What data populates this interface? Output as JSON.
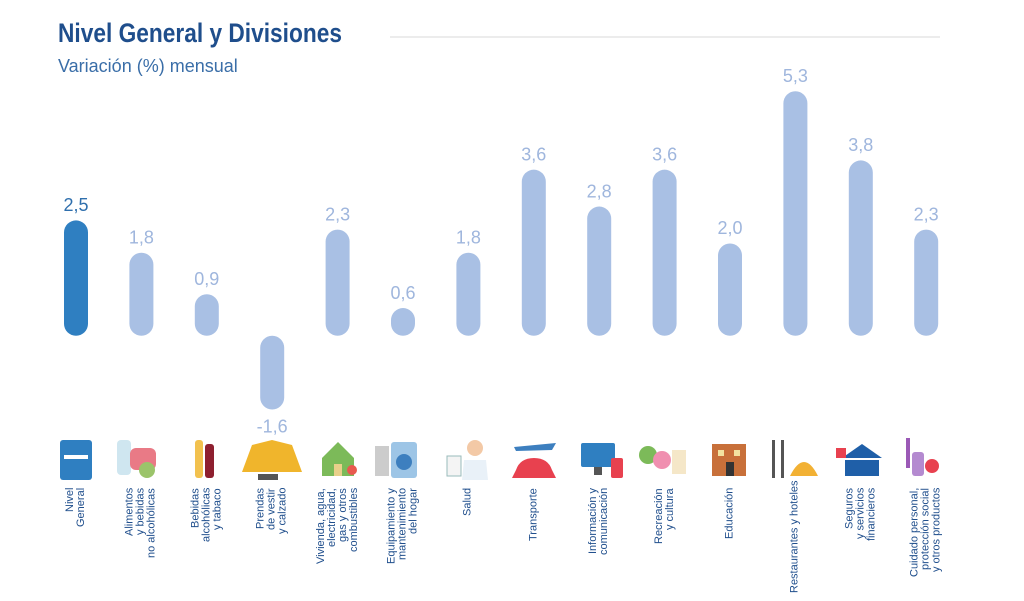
{
  "chart_data": {
    "type": "bar",
    "title": "Nivel General y Divisiones",
    "subtitle": "Variación (%) mensual",
    "categories": [
      "Nivel\nGeneral",
      "Alimentos\ny bebidas\nno alcohólicas",
      "Bebidas\nalcohólicas\ny tabaco",
      "Prendas\nde vestir\ny calzado",
      "Vivienda, agua,\nelectricidad,\ngas y otros\ncombustibles",
      "Equipamiento y\nmantenimiento\ndel hogar",
      "Salud",
      "Transporte",
      "Información y\ncomunicación",
      "Recreación\ny cultura",
      "Educación",
      "Restaurantes y hoteles",
      "Seguros\ny servicios\nfinancieros",
      "Cuidado personal,\nprotección social\ny otros productos"
    ],
    "values": [
      2.5,
      1.8,
      0.9,
      -1.6,
      2.3,
      0.6,
      1.8,
      3.6,
      2.8,
      3.6,
      2.0,
      5.3,
      3.8,
      2.3
    ],
    "value_labels": [
      "2,5",
      "1,8",
      "0,9",
      "-1,6",
      "2,3",
      "0,6",
      "1,8",
      "3,6",
      "2,8",
      "3,6",
      "2,0",
      "5,3",
      "3,8",
      "2,3"
    ],
    "colors": [
      "#2f7fc1",
      "#a9c0e4",
      "#a9c0e4",
      "#a9c0e4",
      "#a9c0e4",
      "#a9c0e4",
      "#a9c0e4",
      "#a9c0e4",
      "#a9c0e4",
      "#a9c0e4",
      "#a9c0e4",
      "#a9c0e4",
      "#a9c0e4",
      "#a9c0e4"
    ],
    "ylim": [
      -2,
      5.5
    ]
  }
}
